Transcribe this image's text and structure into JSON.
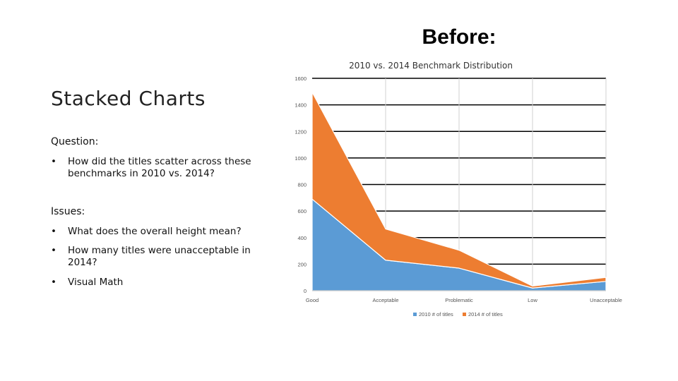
{
  "slide": {
    "heading": "Before:",
    "title": "Stacked Charts",
    "question_label": "Question:",
    "question_bullets": [
      "How did the titles scatter across these benchmarks in 2010 vs. 2014?"
    ],
    "issues_label": "Issues:",
    "issues_bullets": [
      "What does the overall height mean?",
      "How many titles were unacceptable in 2014?",
      "Visual Math"
    ],
    "bullet_symbol": "•"
  },
  "chart_data": {
    "type": "area",
    "title": "2010 vs. 2014 Benchmark Distribution",
    "stacked": true,
    "categories": [
      "Good",
      "Acceptable",
      "Problematic",
      "Low",
      "Unacceptable"
    ],
    "series": [
      {
        "name": "2010 # of titles",
        "values": [
          690,
          230,
          170,
          20,
          70
        ],
        "color": "#5b9bd5"
      },
      {
        "name": "2014 # of titles",
        "values": [
          805,
          235,
          135,
          15,
          30
        ],
        "color": "#ed7d31"
      }
    ],
    "ylim": [
      0,
      1600
    ],
    "yticks": [
      0,
      200,
      400,
      600,
      800,
      1000,
      1200,
      1400,
      1600
    ],
    "grid": true,
    "legend_position": "bottom"
  }
}
